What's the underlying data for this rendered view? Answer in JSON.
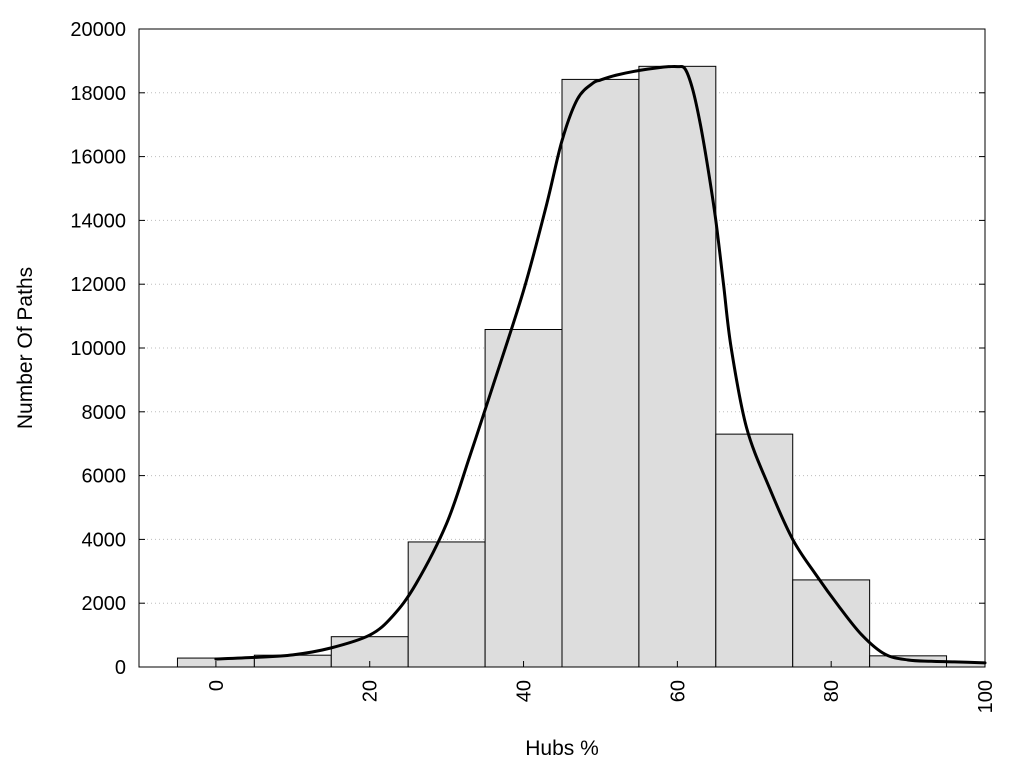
{
  "chart_data": {
    "type": "bar",
    "title": "",
    "xlabel": "Hubs %",
    "ylabel": "Number Of Paths",
    "xlim": [
      -10,
      100
    ],
    "ylim": [
      0,
      20000
    ],
    "x_ticks": [
      "0",
      "20",
      "40",
      "60",
      "80",
      "100"
    ],
    "y_ticks": [
      "0",
      "2000",
      "4000",
      "6000",
      "8000",
      "10000",
      "12000",
      "14000",
      "16000",
      "18000",
      "20000"
    ],
    "grid": "horizontal-dotted",
    "bar_color": "#dddddd",
    "bins": [
      {
        "from": -5,
        "to": 5,
        "value": 280
      },
      {
        "from": 5,
        "to": 15,
        "value": 370
      },
      {
        "from": 15,
        "to": 25,
        "value": 950
      },
      {
        "from": 25,
        "to": 35,
        "value": 3920
      },
      {
        "from": 35,
        "to": 45,
        "value": 10580
      },
      {
        "from": 45,
        "to": 55,
        "value": 18420
      },
      {
        "from": 55,
        "to": 65,
        "value": 18830
      },
      {
        "from": 65,
        "to": 75,
        "value": 7300
      },
      {
        "from": 75,
        "to": 85,
        "value": 2730
      },
      {
        "from": 85,
        "to": 95,
        "value": 350
      },
      {
        "from": 95,
        "to": 100,
        "value": 150
      }
    ],
    "curve": {
      "color": "#000000",
      "x": [
        0,
        5,
        10,
        15,
        20,
        23,
        26,
        30,
        33,
        36,
        40,
        43,
        45,
        47,
        49,
        50,
        52,
        55,
        58,
        59,
        60,
        61,
        62,
        63,
        64,
        65,
        66,
        67,
        69,
        72,
        75,
        78,
        81,
        84,
        87,
        90,
        93,
        96,
        100
      ],
      "y": [
        250,
        300,
        380,
        600,
        1000,
        1600,
        2600,
        4500,
        6600,
        8800,
        11800,
        14500,
        16500,
        17800,
        18300,
        18400,
        18550,
        18700,
        18800,
        18820,
        18820,
        18750,
        18100,
        17000,
        15600,
        14000,
        12000,
        10000,
        7500,
        5600,
        4000,
        2900,
        1900,
        1000,
        400,
        220,
        180,
        160,
        130
      ]
    }
  }
}
